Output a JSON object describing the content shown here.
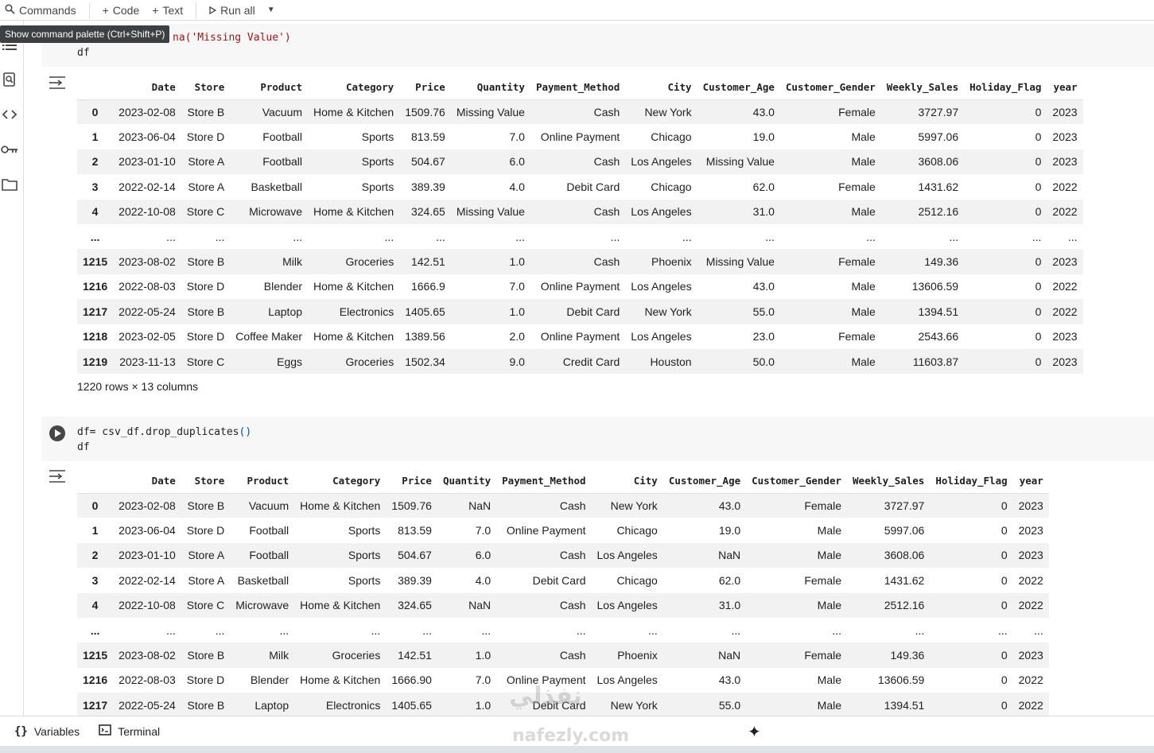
{
  "toolbar": {
    "commands_label": "Commands",
    "code_label": "Code",
    "text_label": "Text",
    "run_all_label": "Run all"
  },
  "tooltip": "Show command palette (Ctrl+Shift+P)",
  "cell1": {
    "line1_visible": "na('Missing Value')",
    "line2": "df"
  },
  "cell2": {
    "line1_code": "df= csv_df.drop_duplicates",
    "line1_parens": "()",
    "line2": "df"
  },
  "table1": {
    "columns": [
      "",
      "Date",
      "Store",
      "Product",
      "Category",
      "Price",
      "Quantity",
      "Payment_Method",
      "City",
      "Customer_Age",
      "Customer_Gender",
      "Weekly_Sales",
      "Holiday_Flag",
      "year"
    ],
    "rows": [
      [
        "0",
        "2023-02-08",
        "Store B",
        "Vacuum",
        "Home & Kitchen",
        "1509.76",
        "Missing Value",
        "Cash",
        "New York",
        "43.0",
        "Female",
        "3727.97",
        "0",
        "2023"
      ],
      [
        "1",
        "2023-06-04",
        "Store D",
        "Football",
        "Sports",
        "813.59",
        "7.0",
        "Online Payment",
        "Chicago",
        "19.0",
        "Male",
        "5997.06",
        "0",
        "2023"
      ],
      [
        "2",
        "2023-01-10",
        "Store A",
        "Football",
        "Sports",
        "504.67",
        "6.0",
        "Cash",
        "Los Angeles",
        "Missing Value",
        "Male",
        "3608.06",
        "0",
        "2023"
      ],
      [
        "3",
        "2022-02-14",
        "Store A",
        "Basketball",
        "Sports",
        "389.39",
        "4.0",
        "Debit Card",
        "Chicago",
        "62.0",
        "Female",
        "1431.62",
        "0",
        "2022"
      ],
      [
        "4",
        "2022-10-08",
        "Store C",
        "Microwave",
        "Home & Kitchen",
        "324.65",
        "Missing Value",
        "Cash",
        "Los Angeles",
        "31.0",
        "Male",
        "2512.16",
        "0",
        "2022"
      ],
      [
        "...",
        "...",
        "...",
        "...",
        "...",
        "...",
        "...",
        "...",
        "...",
        "...",
        "...",
        "...",
        "...",
        "..."
      ],
      [
        "1215",
        "2023-08-02",
        "Store B",
        "Milk",
        "Groceries",
        "142.51",
        "1.0",
        "Cash",
        "Phoenix",
        "Missing Value",
        "Female",
        "149.36",
        "0",
        "2023"
      ],
      [
        "1216",
        "2022-08-03",
        "Store D",
        "Blender",
        "Home & Kitchen",
        "1666.9",
        "7.0",
        "Online Payment",
        "Los Angeles",
        "43.0",
        "Male",
        "13606.59",
        "0",
        "2022"
      ],
      [
        "1217",
        "2022-05-24",
        "Store B",
        "Laptop",
        "Electronics",
        "1405.65",
        "1.0",
        "Debit Card",
        "New York",
        "55.0",
        "Male",
        "1394.51",
        "0",
        "2022"
      ],
      [
        "1218",
        "2023-02-05",
        "Store D",
        "Coffee Maker",
        "Home & Kitchen",
        "1389.56",
        "2.0",
        "Online Payment",
        "Los Angeles",
        "23.0",
        "Female",
        "2543.66",
        "0",
        "2023"
      ],
      [
        "1219",
        "2023-11-13",
        "Store C",
        "Eggs",
        "Groceries",
        "1502.34",
        "9.0",
        "Credit Card",
        "Houston",
        "50.0",
        "Male",
        "11603.87",
        "0",
        "2023"
      ]
    ],
    "summary": "1220 rows × 13 columns"
  },
  "table2": {
    "columns": [
      "",
      "Date",
      "Store",
      "Product",
      "Category",
      "Price",
      "Quantity",
      "Payment_Method",
      "City",
      "Customer_Age",
      "Customer_Gender",
      "Weekly_Sales",
      "Holiday_Flag",
      "year"
    ],
    "rows": [
      [
        "0",
        "2023-02-08",
        "Store B",
        "Vacuum",
        "Home & Kitchen",
        "1509.76",
        "NaN",
        "Cash",
        "New York",
        "43.0",
        "Female",
        "3727.97",
        "0",
        "2023"
      ],
      [
        "1",
        "2023-06-04",
        "Store D",
        "Football",
        "Sports",
        "813.59",
        "7.0",
        "Online Payment",
        "Chicago",
        "19.0",
        "Male",
        "5997.06",
        "0",
        "2023"
      ],
      [
        "2",
        "2023-01-10",
        "Store A",
        "Football",
        "Sports",
        "504.67",
        "6.0",
        "Cash",
        "Los Angeles",
        "NaN",
        "Male",
        "3608.06",
        "0",
        "2023"
      ],
      [
        "3",
        "2022-02-14",
        "Store A",
        "Basketball",
        "Sports",
        "389.39",
        "4.0",
        "Debit Card",
        "Chicago",
        "62.0",
        "Female",
        "1431.62",
        "0",
        "2022"
      ],
      [
        "4",
        "2022-10-08",
        "Store C",
        "Microwave",
        "Home & Kitchen",
        "324.65",
        "NaN",
        "Cash",
        "Los Angeles",
        "31.0",
        "Male",
        "2512.16",
        "0",
        "2022"
      ],
      [
        "...",
        "...",
        "...",
        "...",
        "...",
        "...",
        "...",
        "...",
        "...",
        "...",
        "...",
        "...",
        "...",
        "..."
      ],
      [
        "1215",
        "2023-08-02",
        "Store B",
        "Milk",
        "Groceries",
        "142.51",
        "1.0",
        "Cash",
        "Phoenix",
        "NaN",
        "Female",
        "149.36",
        "0",
        "2023"
      ],
      [
        "1216",
        "2022-08-03",
        "Store D",
        "Blender",
        "Home & Kitchen",
        "1666.90",
        "7.0",
        "Online Payment",
        "Los Angeles",
        "43.0",
        "Male",
        "13606.59",
        "0",
        "2022"
      ],
      [
        "1217",
        "2022-05-24",
        "Store B",
        "Laptop",
        "Electronics",
        "1405.65",
        "1.0",
        "Debit Card",
        "New York",
        "55.0",
        "Male",
        "1394.51",
        "0",
        "2022"
      ]
    ]
  },
  "statusbar": {
    "variables_label": "Variables",
    "terminal_label": "Terminal"
  },
  "watermark": {
    "text": "نفذلي",
    "sub": "nafezly.com"
  },
  "icons": {
    "toolbar": [
      "search-icon",
      "plus-icon",
      "play-icon",
      "caret-down-icon"
    ],
    "sidebar": [
      "table-of-contents-icon",
      "find-icon",
      "code-snippets-icon",
      "key-icon",
      "folder-icon"
    ],
    "cells": [
      "run-cell-icon",
      "output-options-icon"
    ],
    "statusbar": [
      "variables-braces-icon",
      "terminal-icon",
      "sparkle-icon"
    ]
  },
  "colors": {
    "string_literal": "#a31515",
    "paren": "#0451a5",
    "code_bg": "#f7f7f7",
    "row_stripe": "#f2f2f2"
  }
}
